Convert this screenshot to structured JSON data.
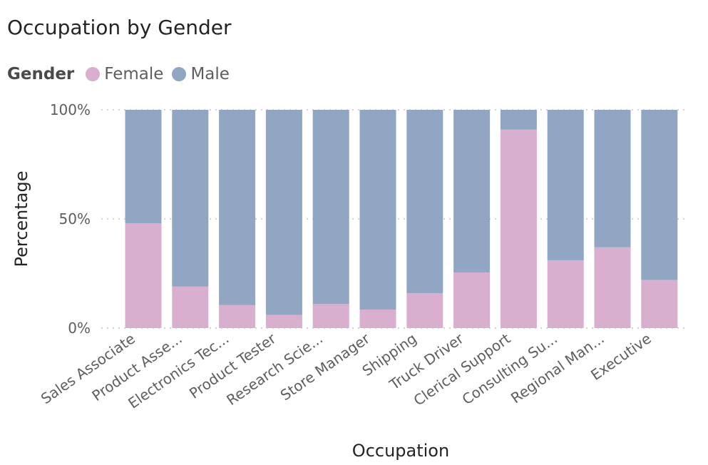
{
  "chart_data": {
    "type": "bar",
    "stacked": "percent",
    "title": "Occupation by Gender",
    "legend_title": "Gender",
    "legend_position": "top-left",
    "xlabel": "Occupation",
    "ylabel": "Percentage",
    "ylim": [
      0,
      100
    ],
    "yticks": [
      "0%",
      "50%",
      "100%"
    ],
    "grid": true,
    "categories": [
      "Sales Associate",
      "Product Asse...",
      "Electronics Tec...",
      "Product Tester",
      "Research Scie...",
      "Store Manager",
      "Shipping",
      "Truck Driver",
      "Clerical Support",
      "Consulting Su...",
      "Regional Man...",
      "Executive"
    ],
    "series": [
      {
        "name": "Female",
        "color": "#d9afd0",
        "values": [
          48,
          19,
          10.5,
          6,
          11,
          8.5,
          16,
          25.5,
          91,
          31,
          37,
          22
        ]
      },
      {
        "name": "Male",
        "color": "#91a6c2",
        "values": [
          52,
          81,
          89.5,
          94,
          89,
          91.5,
          84,
          74.5,
          9,
          69,
          63,
          78
        ]
      }
    ]
  }
}
